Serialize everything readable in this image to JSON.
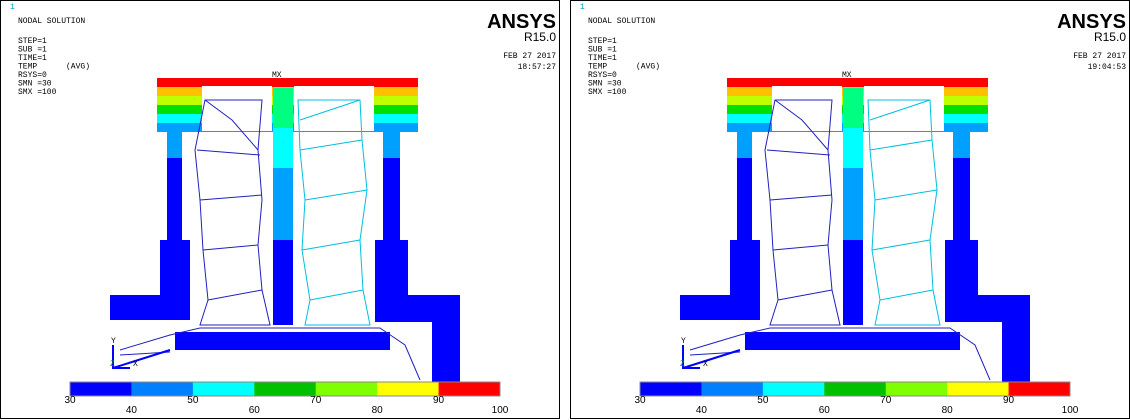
{
  "panels": [
    {
      "frame_number": "1",
      "title": "NODAL SOLUTION",
      "info": [
        "STEP=1",
        "SUB =1",
        "TIME=1",
        "TEMP      (AVG)",
        "RSYS=0",
        "SMN =30",
        "SMX =100"
      ],
      "logo": "ANSYS",
      "version": "R15.0",
      "date": "FEB 27 2017",
      "time": "18:57:27",
      "max_label": "MX",
      "axis_y": "Y",
      "axis_z": "Z",
      "axis_x": "X",
      "legend_labels": [
        "30",
        "40",
        "50",
        "60",
        "70",
        "80",
        "90",
        "100"
      ]
    },
    {
      "frame_number": "1",
      "title": "NODAL SOLUTION",
      "info": [
        "STEP=1",
        "SUB =1",
        "TIME=1",
        "TEMP      (AVG)",
        "RSYS=0",
        "SMN =30",
        "SMX =100"
      ],
      "logo": "ANSYS",
      "version": "R15.0",
      "date": "FEB 27 2017",
      "time": "19:04:53",
      "max_label": "MX",
      "axis_y": "Y",
      "axis_z": "Z",
      "axis_x": "X",
      "legend_labels": [
        "30",
        "40",
        "50",
        "60",
        "70",
        "80",
        "90",
        "100"
      ]
    }
  ]
}
